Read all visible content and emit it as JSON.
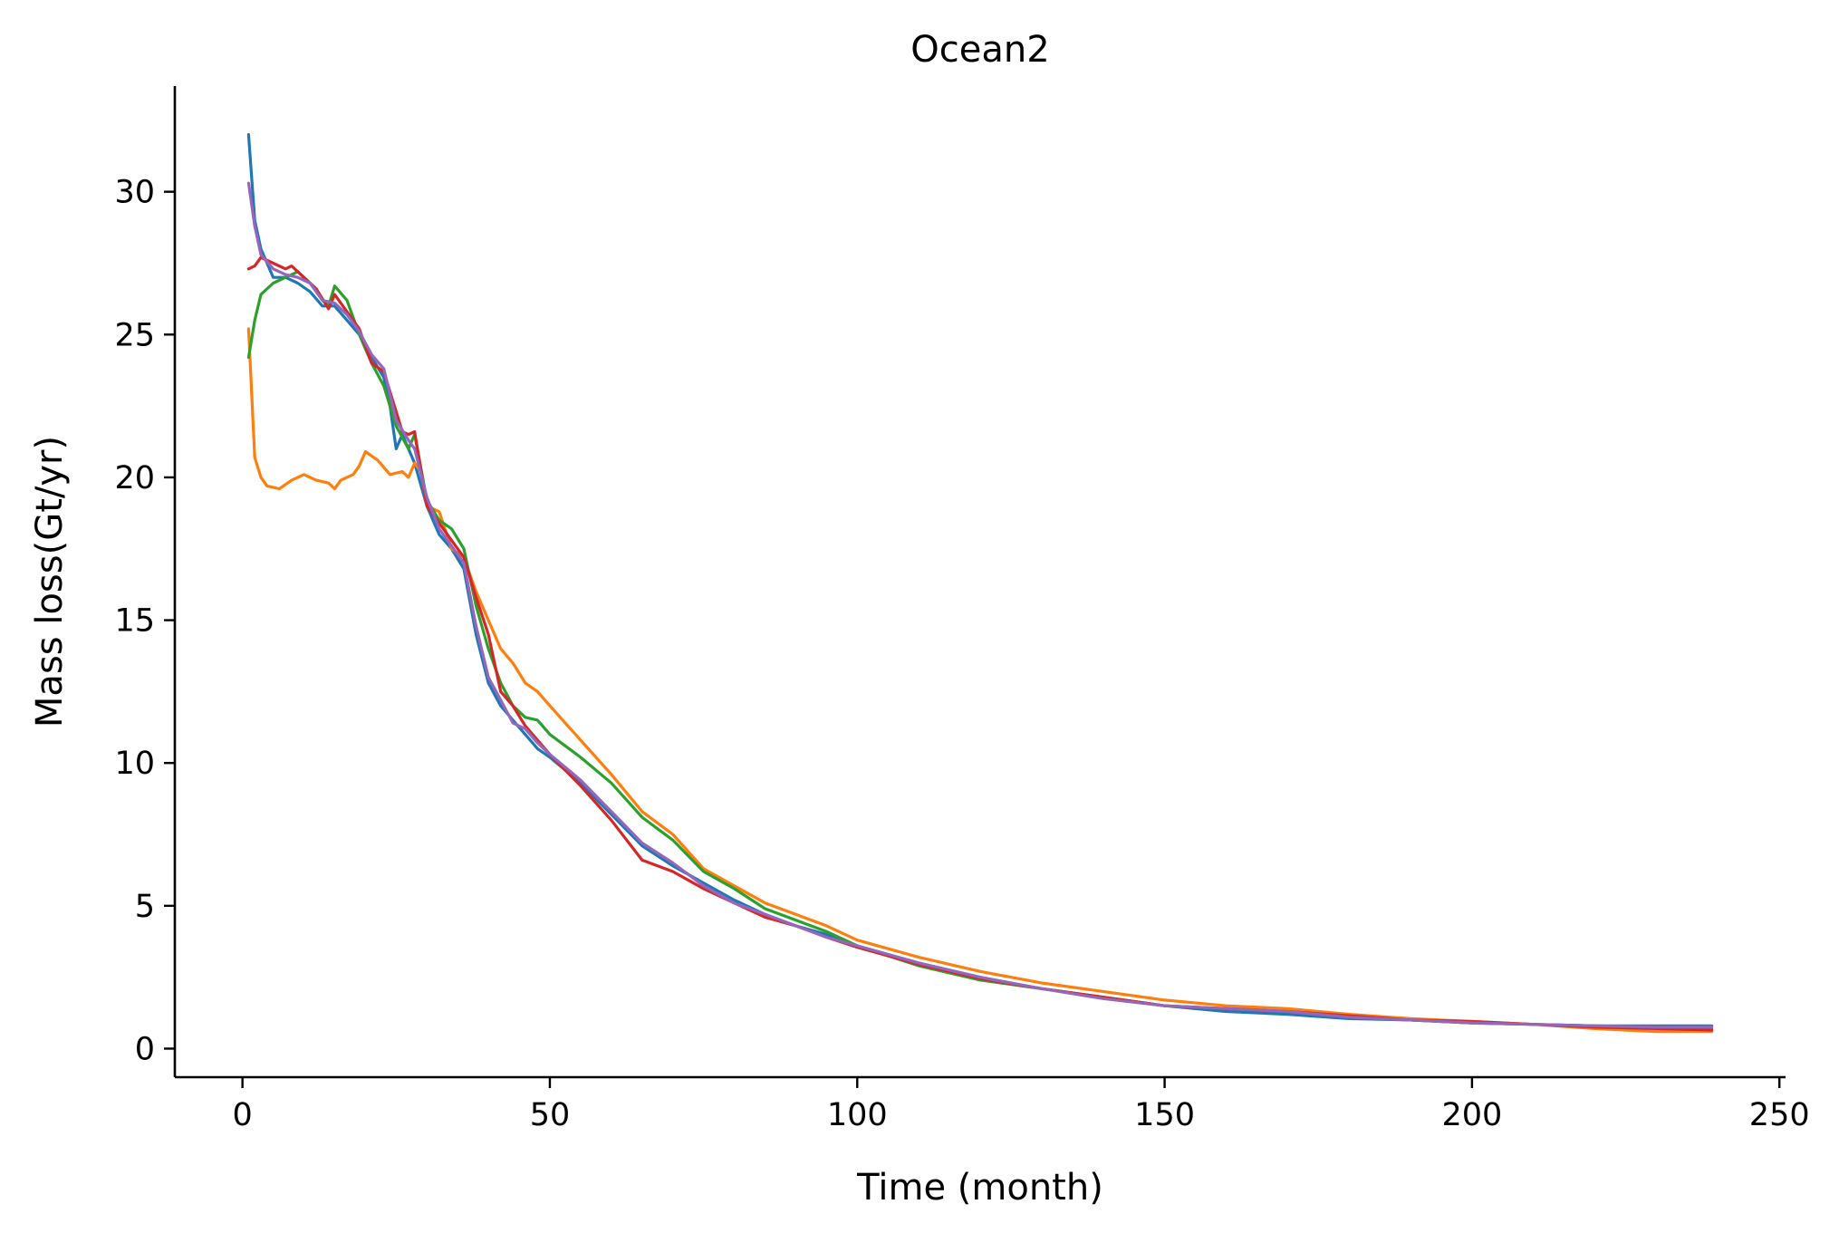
{
  "chart_data": {
    "type": "line",
    "title": "Ocean2",
    "xlabel": "Time (month)",
    "ylabel": "Mass loss(Gt/yr)",
    "xlim": [
      -11,
      251
    ],
    "ylim": [
      -1.0,
      33.7
    ],
    "xticks": [
      0,
      50,
      100,
      150,
      200,
      250
    ],
    "yticks": [
      0,
      5,
      10,
      15,
      20,
      25,
      30
    ],
    "grid": false,
    "legend": "none",
    "series": [
      {
        "name": "series-1",
        "color": "#1f77b4",
        "points": [
          [
            1,
            32.0
          ],
          [
            2,
            29.0
          ],
          [
            3,
            28.0
          ],
          [
            5,
            27.0
          ],
          [
            7,
            27.0
          ],
          [
            9,
            26.8
          ],
          [
            11,
            26.5
          ],
          [
            13,
            26.0
          ],
          [
            15,
            26.0
          ],
          [
            17,
            25.5
          ],
          [
            19,
            25.0
          ],
          [
            21,
            24.2
          ],
          [
            23,
            23.5
          ],
          [
            24,
            22.5
          ],
          [
            25,
            21.0
          ],
          [
            26,
            21.5
          ],
          [
            27,
            21.0
          ],
          [
            28,
            20.5
          ],
          [
            30,
            19.0
          ],
          [
            32,
            18.0
          ],
          [
            34,
            17.5
          ],
          [
            36,
            16.8
          ],
          [
            38,
            14.5
          ],
          [
            40,
            12.8
          ],
          [
            42,
            12.0
          ],
          [
            44,
            11.5
          ],
          [
            46,
            11.0
          ],
          [
            48,
            10.5
          ],
          [
            50,
            10.2
          ],
          [
            55,
            9.3
          ],
          [
            60,
            8.2
          ],
          [
            65,
            7.1
          ],
          [
            70,
            6.4
          ],
          [
            75,
            5.8
          ],
          [
            80,
            5.2
          ],
          [
            85,
            4.7
          ],
          [
            90,
            4.3
          ],
          [
            95,
            4.0
          ],
          [
            100,
            3.6
          ],
          [
            110,
            3.0
          ],
          [
            120,
            2.5
          ],
          [
            130,
            2.1
          ],
          [
            140,
            1.8
          ],
          [
            150,
            1.5
          ],
          [
            160,
            1.3
          ],
          [
            170,
            1.2
          ],
          [
            180,
            1.05
          ],
          [
            190,
            1.0
          ],
          [
            200,
            0.9
          ],
          [
            210,
            0.85
          ],
          [
            220,
            0.8
          ],
          [
            230,
            0.8
          ],
          [
            239,
            0.8
          ]
        ]
      },
      {
        "name": "series-2",
        "color": "#ff7f0e",
        "points": [
          [
            1,
            25.2
          ],
          [
            2,
            20.7
          ],
          [
            3,
            20.0
          ],
          [
            4,
            19.7
          ],
          [
            6,
            19.6
          ],
          [
            8,
            19.9
          ],
          [
            10,
            20.1
          ],
          [
            12,
            19.9
          ],
          [
            14,
            19.8
          ],
          [
            15,
            19.6
          ],
          [
            16,
            19.9
          ],
          [
            18,
            20.1
          ],
          [
            19,
            20.4
          ],
          [
            20,
            20.9
          ],
          [
            22,
            20.6
          ],
          [
            24,
            20.1
          ],
          [
            26,
            20.2
          ],
          [
            27,
            20.0
          ],
          [
            28,
            20.5
          ],
          [
            29,
            20.2
          ],
          [
            30,
            19.0
          ],
          [
            32,
            18.8
          ],
          [
            34,
            17.5
          ],
          [
            36,
            17.2
          ],
          [
            38,
            16.0
          ],
          [
            40,
            15.0
          ],
          [
            42,
            14.0
          ],
          [
            44,
            13.5
          ],
          [
            46,
            12.8
          ],
          [
            48,
            12.5
          ],
          [
            50,
            12.0
          ],
          [
            55,
            10.8
          ],
          [
            60,
            9.6
          ],
          [
            65,
            8.3
          ],
          [
            70,
            7.5
          ],
          [
            75,
            6.3
          ],
          [
            80,
            5.7
          ],
          [
            85,
            5.1
          ],
          [
            90,
            4.7
          ],
          [
            95,
            4.3
          ],
          [
            100,
            3.8
          ],
          [
            110,
            3.2
          ],
          [
            120,
            2.7
          ],
          [
            130,
            2.3
          ],
          [
            140,
            2.0
          ],
          [
            150,
            1.7
          ],
          [
            160,
            1.5
          ],
          [
            170,
            1.4
          ],
          [
            180,
            1.2
          ],
          [
            190,
            1.05
          ],
          [
            200,
            0.95
          ],
          [
            210,
            0.85
          ],
          [
            220,
            0.7
          ],
          [
            230,
            0.6
          ],
          [
            239,
            0.6
          ]
        ]
      },
      {
        "name": "series-3",
        "color": "#2ca02c",
        "points": [
          [
            1,
            24.2
          ],
          [
            2,
            25.5
          ],
          [
            3,
            26.4
          ],
          [
            5,
            26.8
          ],
          [
            7,
            27.0
          ],
          [
            9,
            27.2
          ],
          [
            11,
            26.8
          ],
          [
            13,
            26.2
          ],
          [
            14,
            26.0
          ],
          [
            15,
            26.7
          ],
          [
            17,
            26.2
          ],
          [
            19,
            25.0
          ],
          [
            21,
            24.0
          ],
          [
            23,
            23.2
          ],
          [
            25,
            21.8
          ],
          [
            27,
            21.0
          ],
          [
            28,
            21.5
          ],
          [
            30,
            19.2
          ],
          [
            32,
            18.5
          ],
          [
            34,
            18.2
          ],
          [
            36,
            17.5
          ],
          [
            38,
            15.5
          ],
          [
            40,
            14.0
          ],
          [
            42,
            12.8
          ],
          [
            44,
            12.0
          ],
          [
            46,
            11.6
          ],
          [
            48,
            11.5
          ],
          [
            50,
            11.0
          ],
          [
            55,
            10.2
          ],
          [
            60,
            9.3
          ],
          [
            65,
            8.1
          ],
          [
            70,
            7.3
          ],
          [
            75,
            6.2
          ],
          [
            80,
            5.6
          ],
          [
            85,
            4.9
          ],
          [
            90,
            4.5
          ],
          [
            95,
            4.1
          ],
          [
            100,
            3.6
          ],
          [
            110,
            2.9
          ],
          [
            120,
            2.4
          ],
          [
            130,
            2.1
          ],
          [
            140,
            1.8
          ],
          [
            150,
            1.5
          ],
          [
            160,
            1.4
          ],
          [
            170,
            1.3
          ],
          [
            180,
            1.1
          ],
          [
            190,
            1.0
          ],
          [
            200,
            0.9
          ],
          [
            210,
            0.85
          ],
          [
            220,
            0.8
          ],
          [
            230,
            0.75
          ],
          [
            239,
            0.7
          ]
        ]
      },
      {
        "name": "series-4",
        "color": "#d62728",
        "points": [
          [
            1,
            27.3
          ],
          [
            2,
            27.4
          ],
          [
            3,
            27.7
          ],
          [
            5,
            27.5
          ],
          [
            7,
            27.3
          ],
          [
            8,
            27.4
          ],
          [
            10,
            27.0
          ],
          [
            12,
            26.6
          ],
          [
            14,
            25.9
          ],
          [
            15,
            26.4
          ],
          [
            17,
            25.8
          ],
          [
            19,
            25.2
          ],
          [
            21,
            24.0
          ],
          [
            23,
            23.7
          ],
          [
            25,
            22.3
          ],
          [
            26,
            21.6
          ],
          [
            27,
            21.5
          ],
          [
            28,
            21.6
          ],
          [
            30,
            19.0
          ],
          [
            32,
            18.4
          ],
          [
            34,
            17.8
          ],
          [
            36,
            17.2
          ],
          [
            38,
            15.8
          ],
          [
            40,
            14.5
          ],
          [
            42,
            12.5
          ],
          [
            44,
            12.0
          ],
          [
            46,
            11.3
          ],
          [
            48,
            10.8
          ],
          [
            50,
            10.3
          ],
          [
            55,
            9.2
          ],
          [
            60,
            8.0
          ],
          [
            65,
            6.6
          ],
          [
            70,
            6.2
          ],
          [
            75,
            5.6
          ],
          [
            80,
            5.1
          ],
          [
            85,
            4.6
          ],
          [
            90,
            4.3
          ],
          [
            95,
            3.9
          ],
          [
            100,
            3.55
          ],
          [
            110,
            2.95
          ],
          [
            120,
            2.45
          ],
          [
            130,
            2.1
          ],
          [
            140,
            1.8
          ],
          [
            150,
            1.5
          ],
          [
            160,
            1.4
          ],
          [
            170,
            1.3
          ],
          [
            180,
            1.15
          ],
          [
            190,
            1.0
          ],
          [
            200,
            0.95
          ],
          [
            210,
            0.85
          ],
          [
            220,
            0.75
          ],
          [
            230,
            0.7
          ],
          [
            239,
            0.65
          ]
        ]
      },
      {
        "name": "series-5",
        "color": "#9467bd",
        "points": [
          [
            1,
            30.3
          ],
          [
            2,
            28.8
          ],
          [
            3,
            27.8
          ],
          [
            5,
            27.3
          ],
          [
            7,
            27.1
          ],
          [
            9,
            27.0
          ],
          [
            11,
            26.8
          ],
          [
            13,
            26.2
          ],
          [
            15,
            26.1
          ],
          [
            17,
            25.7
          ],
          [
            19,
            25.1
          ],
          [
            21,
            24.3
          ],
          [
            23,
            23.8
          ],
          [
            25,
            22.0
          ],
          [
            27,
            21.3
          ],
          [
            28,
            21.0
          ],
          [
            30,
            19.3
          ],
          [
            32,
            18.2
          ],
          [
            34,
            17.6
          ],
          [
            36,
            17.0
          ],
          [
            38,
            14.8
          ],
          [
            40,
            13.0
          ],
          [
            42,
            12.2
          ],
          [
            44,
            11.4
          ],
          [
            46,
            11.2
          ],
          [
            48,
            10.7
          ],
          [
            50,
            10.3
          ],
          [
            55,
            9.4
          ],
          [
            60,
            8.3
          ],
          [
            65,
            7.2
          ],
          [
            70,
            6.5
          ],
          [
            75,
            5.7
          ],
          [
            80,
            5.1
          ],
          [
            85,
            4.7
          ],
          [
            90,
            4.3
          ],
          [
            95,
            3.9
          ],
          [
            100,
            3.6
          ],
          [
            110,
            3.0
          ],
          [
            120,
            2.5
          ],
          [
            130,
            2.1
          ],
          [
            140,
            1.75
          ],
          [
            150,
            1.5
          ],
          [
            160,
            1.4
          ],
          [
            170,
            1.3
          ],
          [
            180,
            1.1
          ],
          [
            190,
            1.0
          ],
          [
            200,
            0.9
          ],
          [
            210,
            0.85
          ],
          [
            220,
            0.8
          ],
          [
            230,
            0.75
          ],
          [
            239,
            0.75
          ]
        ]
      }
    ]
  }
}
